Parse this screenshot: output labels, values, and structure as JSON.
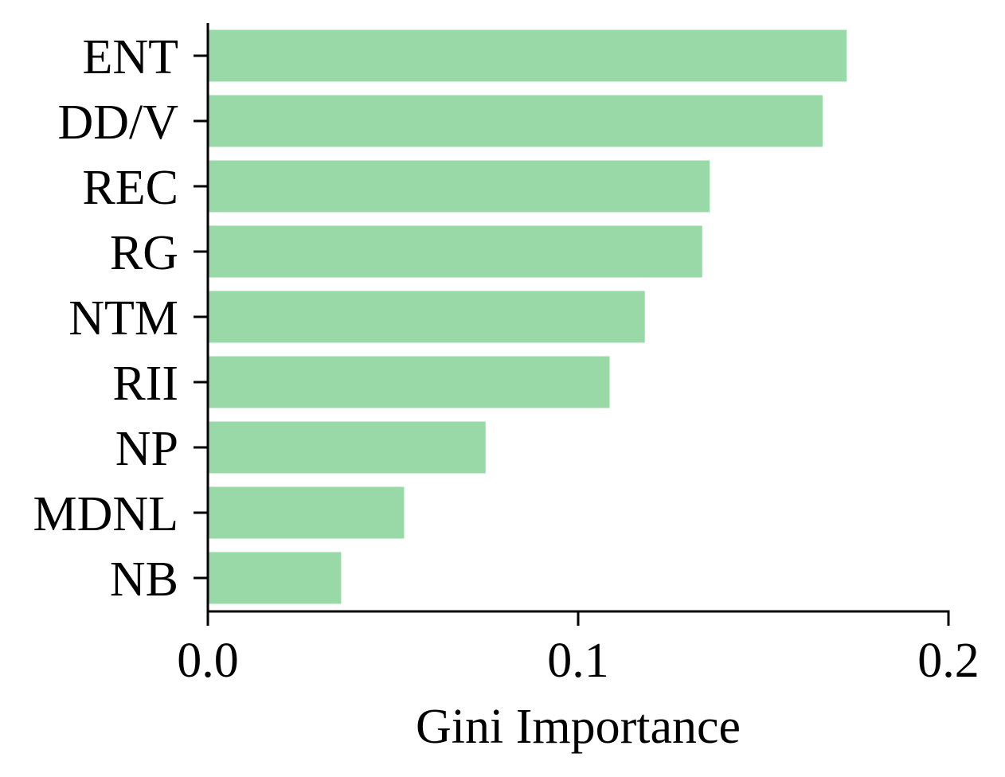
{
  "chart_data": {
    "type": "bar",
    "orientation": "horizontal",
    "categories": [
      "ENT",
      "DD/V",
      "REC",
      "RG",
      "NTM",
      "RII",
      "NP",
      "MDNL",
      "NB"
    ],
    "values": [
      0.1725,
      0.166,
      0.1355,
      0.1335,
      0.118,
      0.1085,
      0.075,
      0.053,
      0.036
    ],
    "title": "",
    "xlabel": "Gini Importance",
    "ylabel": "",
    "xlim": [
      0.0,
      0.2
    ],
    "xticks": [
      {
        "value": 0.0,
        "label": "0.0"
      },
      {
        "value": 0.1,
        "label": "0.1"
      },
      {
        "value": 0.2,
        "label": "0.2"
      }
    ],
    "grid": false,
    "legend": "none",
    "bar_color": "#99d9a8",
    "axis_color": "#000000"
  }
}
